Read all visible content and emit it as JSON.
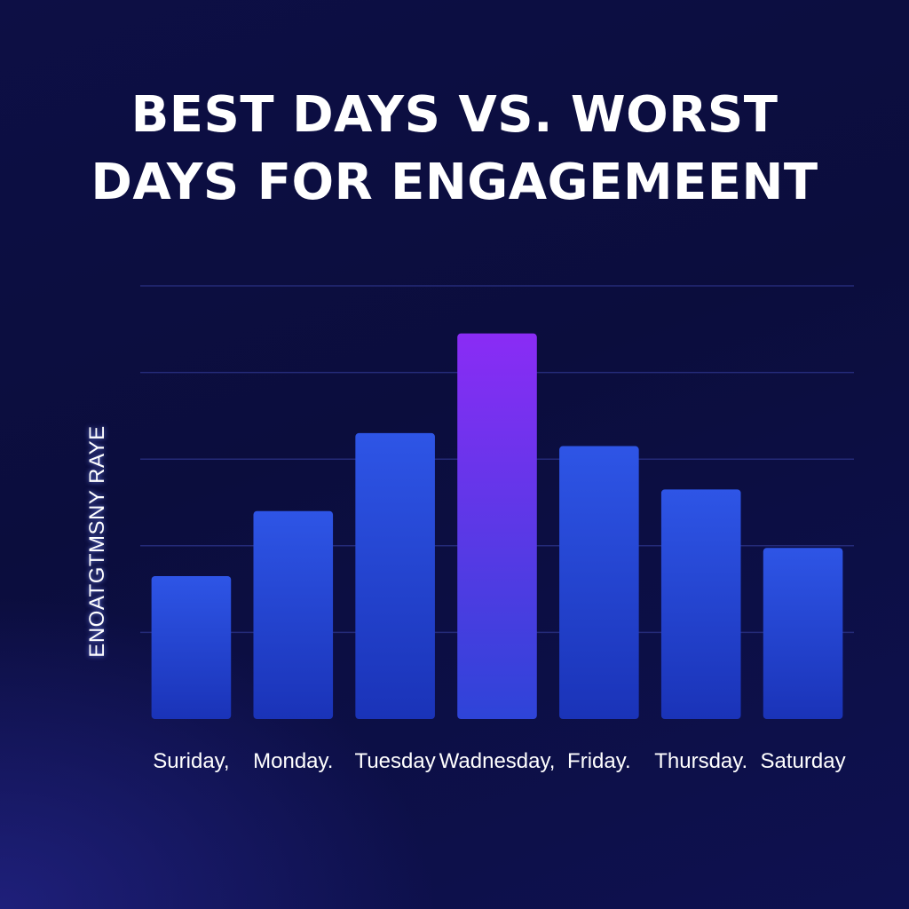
{
  "chart_data": {
    "type": "bar",
    "title_lines": [
      "BEST DAYS VS. WORST",
      "DAYS FOR ENGAGEMEENT"
    ],
    "ylabel": "ENOATGTMSNY RAYE",
    "xlabel": "",
    "categories": [
      "Suriday,",
      "Monday.",
      "Tuesday",
      "Wadnesday,",
      "Friday.",
      "Thursday.",
      "Saturday"
    ],
    "values": [
      33,
      48,
      66,
      89,
      63,
      53,
      39.5
    ],
    "ylim": [
      0,
      100
    ],
    "grid": true,
    "legend": "none",
    "highlight_index": 3,
    "colors": {
      "bar_top": "#2e55e6",
      "bar_bottom": "#1a33b8",
      "highlight_top": "#8a2cf5",
      "highlight_bottom": "#2e44d8",
      "grid": "#242a78"
    }
  }
}
